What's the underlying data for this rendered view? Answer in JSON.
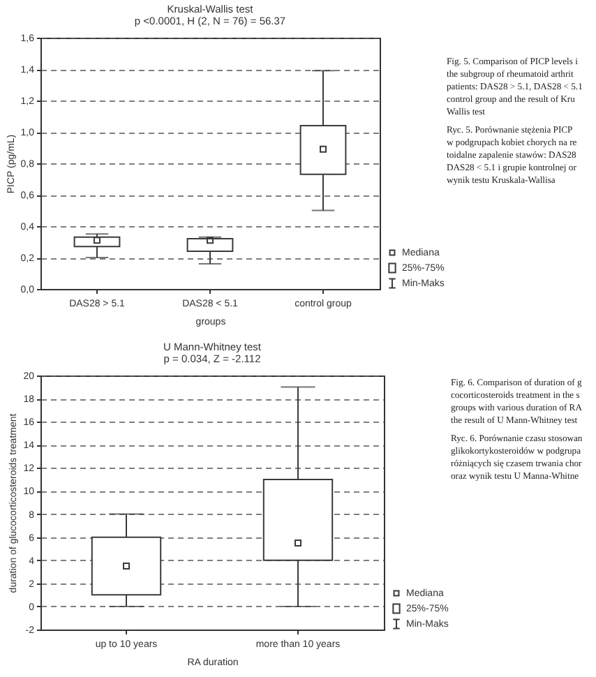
{
  "chart_data": [
    {
      "type": "box",
      "title": "Kruskal-Wallis test",
      "subtitle": "p <0.0001, H (2, N = 76) = 56.37",
      "xlabel": "groups",
      "ylabel": "PICP (pg/mL)",
      "categories": [
        "DAS28 > 5.1",
        "DAS28 < 5.1",
        "control group"
      ],
      "series": [
        {
          "color": "#3a3a3a",
          "boxes": [
            {
              "low": 0.2,
              "q1": 0.27,
              "median": 0.31,
              "q3": 0.33,
              "high": 0.35
            },
            {
              "low": 0.16,
              "q1": 0.24,
              "median": 0.31,
              "q3": 0.32,
              "high": 0.33
            },
            {
              "low": 0.5,
              "q1": 0.73,
              "median": 0.89,
              "q3": 1.04,
              "high": 1.39
            }
          ]
        }
      ],
      "ylim": [
        0,
        1.6
      ],
      "yticks": [
        {
          "value": 0,
          "label": "0,0"
        },
        {
          "value": 0.2,
          "label": "0,2"
        },
        {
          "value": 0.4,
          "label": "0,4"
        },
        {
          "value": 0.6,
          "label": "0,6"
        },
        {
          "value": 0.8,
          "label": "0,8"
        },
        {
          "value": 1.0,
          "label": "1,0"
        },
        {
          "value": 1.2,
          "label": "1,2"
        },
        {
          "value": 1.4,
          "label": "1,4"
        },
        {
          "value": 1.6,
          "label": "1,6"
        }
      ],
      "grid": "y",
      "annotations": [
        "Mediana",
        "25%-75%",
        "Min-Maks",
        "Fig. 5. Comparison of PICP levels i\nthe subgroup of rheumatoid arthrit\npatients: DAS28 > 5.1, DAS28 < 5.1\ncontrol group and the result of Kru\nWallis test",
        "Ryc. 5. Porównanie stężenia PICP\nw podgrupach kobiet chorych na re\ntoidalne zapalenie stawów: DAS28\nDAS28 < 5.1 i grupie kontrolnej or\nwynik testu Kruskala-Wallisa"
      ]
    },
    {
      "type": "box",
      "title": "U Mann-Whitney test",
      "subtitle": "p = 0.034, Z = -2.112",
      "xlabel": "RA duration",
      "ylabel": "duration of glucocorticosteroids treatment",
      "categories": [
        "up to 10 years",
        "more than 10 years"
      ],
      "series": [
        {
          "color": "#3a3a3a",
          "boxes": [
            {
              "low": 0,
              "q1": 1,
              "median": 3.5,
              "q3": 6,
              "high": 8
            },
            {
              "low": 0,
              "q1": 4,
              "median": 5.5,
              "q3": 11,
              "high": 19
            }
          ]
        }
      ],
      "ylim": [
        -2,
        20
      ],
      "yticks": [
        -2,
        0,
        2,
        4,
        6,
        8,
        10,
        12,
        14,
        16,
        18,
        20
      ],
      "grid": "y",
      "annotations": [
        "Mediana",
        "25%-75%",
        "Min-Maks",
        "Fig. 6. Comparison of duration of g\ncocorticosteroids treatment in the s\ngroups with various duration of RA\nthe result of U Mann-Whitney test",
        "Ryc. 6. Porównanie czasu stosowan\nglikokortykosteroidów w podgrupa\nróżniących się czasem trwania chor\noraz wynik testu U Manna-Whitne"
      ]
    }
  ]
}
